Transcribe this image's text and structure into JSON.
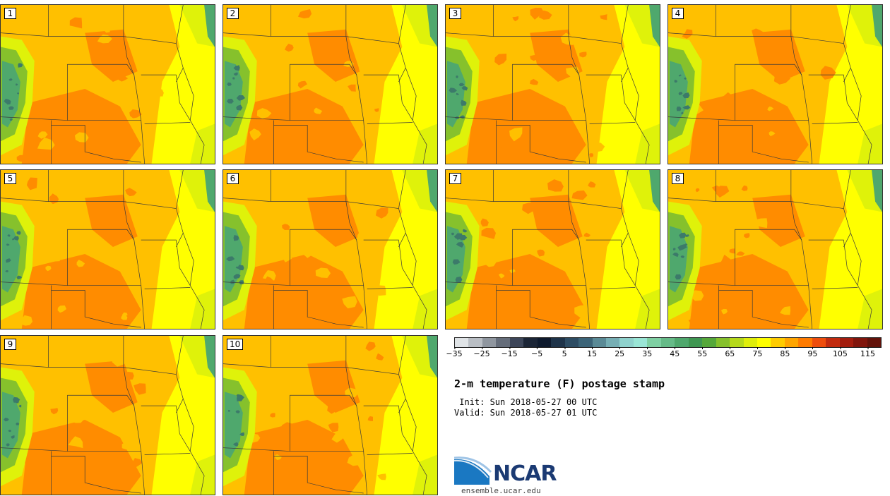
{
  "panels": [
    {
      "label": "1"
    },
    {
      "label": "2"
    },
    {
      "label": "3"
    },
    {
      "label": "4"
    },
    {
      "label": "5"
    },
    {
      "label": "6"
    },
    {
      "label": "7"
    },
    {
      "label": "8"
    },
    {
      "label": "9"
    },
    {
      "label": "10"
    }
  ],
  "colorbar": {
    "colors": [
      "#dfe3e6",
      "#b9bec4",
      "#8f969f",
      "#656d7a",
      "#3d4659",
      "#1b2536",
      "#0e1a2d",
      "#1e3349",
      "#2d4c63",
      "#3c6478",
      "#5a8a96",
      "#76aeb4",
      "#8fd2cd",
      "#9ae6d6",
      "#7fd0a3",
      "#66bb88",
      "#4fa86d",
      "#3f9752",
      "#55a83a",
      "#86c12c",
      "#b5d91b",
      "#dfee0b",
      "#ffff00",
      "#ffcc00",
      "#ffa500",
      "#ff7b00",
      "#ee4d0c",
      "#c22b0f",
      "#a31d0e",
      "#80150c",
      "#62120a"
    ],
    "tick_labels": [
      "−35",
      "−25",
      "−15",
      "−5",
      "5",
      "15",
      "25",
      "35",
      "45",
      "55",
      "65",
      "75",
      "85",
      "95",
      "105",
      "115"
    ]
  },
  "title": "2-m temperature (F) postage stamp",
  "init_line": " Init: Sun 2018-05-27 00 UTC",
  "valid_line": "Valid: Sun 2018-05-27 01 UTC",
  "logo": {
    "wordmark": "NCAR",
    "url": "ensemble.ucar.edu"
  },
  "field_colors": {
    "hot": "#ff8c00",
    "warm": "#ffc000",
    "mild": "#ffff00",
    "cool": "#dff20a",
    "terrain_low": "#86c12c",
    "terrain_mid": "#4fa86d",
    "terrain_high": "#3c7a6a",
    "border": "#3a3a3a"
  }
}
